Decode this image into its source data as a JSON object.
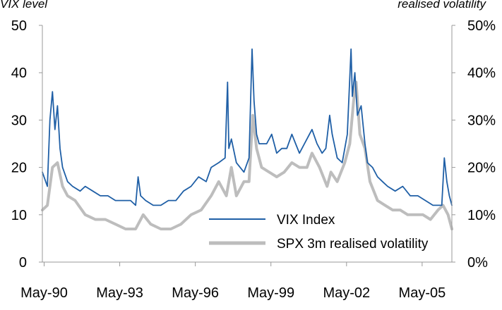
{
  "chart_data": {
    "type": "line",
    "left_axis_title": "VIX level",
    "right_axis_title": "realised volatility",
    "left_ylim": [
      0,
      50
    ],
    "right_ylim": [
      0,
      0.5
    ],
    "left_yticks": [
      "0",
      "10",
      "20",
      "30",
      "40",
      "50"
    ],
    "right_yticks": [
      "0%",
      "10%",
      "20%",
      "30%",
      "40%",
      "50%"
    ],
    "x_tick_labels": [
      "May-90",
      "May-93",
      "May-96",
      "May-99",
      "May-02",
      "May-05"
    ],
    "x_tick_years": [
      1990.37,
      1993.37,
      1996.37,
      1999.37,
      2002.37,
      2005.37
    ],
    "xlim": [
      1990.3,
      2006.55
    ],
    "grid": false,
    "legend_position": "bottom-right",
    "colors": {
      "vix": "#1f5fa6",
      "spx": "#bdbdbd",
      "axis": "#999999"
    },
    "series": [
      {
        "name": "VIX Index",
        "axis": "left",
        "x": [
          1990.3,
          1990.5,
          1990.6,
          1990.7,
          1990.8,
          1990.9,
          1991.0,
          1991.1,
          1991.3,
          1991.5,
          1991.8,
          1992.0,
          1992.3,
          1992.6,
          1992.9,
          1993.2,
          1993.5,
          1993.8,
          1994.0,
          1994.1,
          1994.2,
          1994.4,
          1994.7,
          1995.0,
          1995.3,
          1995.6,
          1995.9,
          1996.2,
          1996.5,
          1996.8,
          1997.0,
          1997.3,
          1997.55,
          1997.65,
          1997.7,
          1997.8,
          1998.0,
          1998.3,
          1998.5,
          1998.62,
          1998.7,
          1998.8,
          1998.9,
          1999.0,
          1999.2,
          1999.4,
          1999.6,
          1999.8,
          2000.0,
          2000.2,
          2000.35,
          2000.5,
          2000.7,
          2000.9,
          2001.0,
          2001.2,
          2001.4,
          2001.55,
          2001.7,
          2001.8,
          2002.0,
          2002.2,
          2002.4,
          2002.55,
          2002.6,
          2002.7,
          2002.8,
          2002.95,
          2003.1,
          2003.2,
          2003.4,
          2003.6,
          2003.8,
          2004.0,
          2004.3,
          2004.6,
          2004.9,
          2005.2,
          2005.5,
          2005.8,
          2006.0,
          2006.15,
          2006.25,
          2006.35,
          2006.45,
          2006.55
        ],
        "y": [
          19,
          16,
          30,
          36,
          28,
          33,
          24,
          20,
          17,
          16,
          15,
          16,
          15,
          14,
          14,
          13,
          13,
          13,
          12,
          18,
          14,
          13,
          12,
          12,
          13,
          13,
          15,
          16,
          18,
          17,
          20,
          21,
          22,
          38,
          24,
          26,
          21,
          19,
          22,
          45,
          34,
          27,
          25,
          25,
          25,
          27,
          23,
          24,
          24,
          27,
          25,
          23,
          25,
          27,
          28,
          25,
          23,
          24,
          31,
          27,
          22,
          21,
          27,
          45,
          35,
          40,
          31,
          33,
          25,
          21,
          20,
          18,
          17,
          16,
          15,
          16,
          14,
          14,
          13,
          12,
          12,
          12,
          22,
          17,
          14,
          12
        ]
      },
      {
        "name": "SPX 3m realised volatility",
        "axis": "right",
        "x": [
          1990.3,
          1990.5,
          1990.7,
          1990.9,
          1991.1,
          1991.3,
          1991.6,
          1992.0,
          1992.4,
          1992.8,
          1993.2,
          1993.6,
          1994.0,
          1994.3,
          1994.6,
          1995.0,
          1995.4,
          1995.8,
          1996.2,
          1996.6,
          1997.0,
          1997.3,
          1997.6,
          1997.8,
          1998.0,
          1998.3,
          1998.5,
          1998.65,
          1998.8,
          1999.0,
          1999.3,
          1999.6,
          1999.9,
          2000.2,
          2000.5,
          2000.8,
          2001.0,
          2001.3,
          2001.6,
          2001.75,
          2002.0,
          2002.3,
          2002.5,
          2002.65,
          2002.75,
          2002.9,
          2003.1,
          2003.3,
          2003.6,
          2003.9,
          2004.2,
          2004.5,
          2004.8,
          2005.1,
          2005.4,
          2005.7,
          2006.0,
          2006.2,
          2006.4,
          2006.55
        ],
        "y": [
          0.11,
          0.12,
          0.2,
          0.21,
          0.16,
          0.14,
          0.13,
          0.1,
          0.09,
          0.09,
          0.08,
          0.07,
          0.07,
          0.1,
          0.08,
          0.07,
          0.07,
          0.08,
          0.1,
          0.11,
          0.14,
          0.17,
          0.14,
          0.2,
          0.14,
          0.17,
          0.17,
          0.31,
          0.24,
          0.2,
          0.19,
          0.18,
          0.19,
          0.21,
          0.2,
          0.2,
          0.23,
          0.2,
          0.16,
          0.19,
          0.17,
          0.21,
          0.25,
          0.34,
          0.38,
          0.27,
          0.24,
          0.17,
          0.13,
          0.12,
          0.11,
          0.11,
          0.1,
          0.1,
          0.1,
          0.09,
          0.11,
          0.12,
          0.1,
          0.07
        ]
      }
    ]
  }
}
